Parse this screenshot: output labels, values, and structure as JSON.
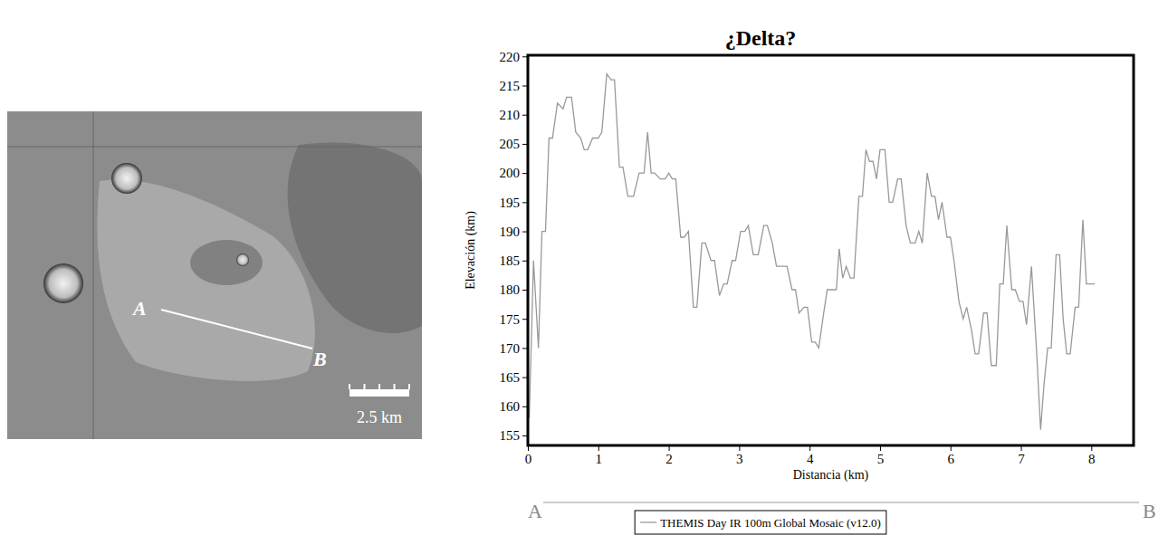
{
  "map": {
    "point_a": "A",
    "point_b": "B",
    "scale_bar": "2.5 km"
  },
  "chart_data": {
    "type": "line",
    "title": "¿Delta?",
    "x_label": "Distancia (km)",
    "y_label": "Elevación (km)",
    "xlim": [
      0,
      8.6
    ],
    "ylim": [
      153.3,
      220.2
    ],
    "xticks": [
      0,
      1,
      2,
      3,
      4,
      5,
      6,
      7,
      8
    ],
    "yticks": [
      155,
      160,
      165,
      170,
      175,
      180,
      185,
      190,
      195,
      200,
      205,
      210,
      215,
      220
    ],
    "grid": false,
    "legend": "bottom",
    "x": [
      0.02,
      0.08,
      0.15,
      0.2,
      0.25,
      0.3,
      0.35,
      0.42,
      0.5,
      0.55,
      0.62,
      0.68,
      0.75,
      0.8,
      0.85,
      0.92,
      1.0,
      1.05,
      1.12,
      1.18,
      1.23,
      1.3,
      1.35,
      1.42,
      1.5,
      1.58,
      1.65,
      1.7,
      1.75,
      1.8,
      1.88,
      1.95,
      2.0,
      2.05,
      2.1,
      2.17,
      2.22,
      2.28,
      2.35,
      2.4,
      2.47,
      2.52,
      2.6,
      2.65,
      2.72,
      2.78,
      2.83,
      2.9,
      2.95,
      3.02,
      3.08,
      3.13,
      3.2,
      3.27,
      3.35,
      3.4,
      3.47,
      3.53,
      3.6,
      3.68,
      3.75,
      3.8,
      3.85,
      3.92,
      3.97,
      4.03,
      4.08,
      4.13,
      4.2,
      4.25,
      4.33,
      4.38,
      4.42,
      4.47,
      4.52,
      4.58,
      4.63,
      4.7,
      4.75,
      4.8,
      4.85,
      4.9,
      4.95,
      5.0,
      5.07,
      5.13,
      5.18,
      5.25,
      5.3,
      5.37,
      5.43,
      5.5,
      5.55,
      5.6,
      5.67,
      5.73,
      5.78,
      5.83,
      5.88,
      5.95,
      6.0,
      6.05,
      6.12,
      6.18,
      6.23,
      6.3,
      6.35,
      6.4,
      6.47,
      6.52,
      6.58,
      6.65,
      6.7,
      6.75,
      6.8,
      6.87,
      6.92,
      6.98,
      7.03,
      7.08,
      7.15,
      7.22,
      7.28,
      7.33,
      7.38,
      7.43,
      7.5,
      7.55,
      7.6,
      7.65,
      7.7,
      7.77,
      7.82,
      7.88,
      7.93,
      8.0,
      8.05
    ],
    "series": [
      {
        "name": "THEMIS Day IR 100m Global Mosaic (v12.0)",
        "color": "#999999",
        "values": [
          158,
          185,
          170,
          190,
          190,
          206,
          206,
          212,
          211,
          213,
          213,
          207,
          206,
          204,
          204,
          206,
          206,
          207,
          217,
          216,
          216,
          201,
          201,
          196,
          196,
          200,
          200,
          207,
          200,
          200,
          199,
          199,
          200,
          199,
          199,
          189,
          189,
          190,
          177,
          177,
          188,
          188,
          185,
          185,
          179,
          181,
          181,
          185,
          185,
          190,
          190,
          191,
          186,
          186,
          191,
          191,
          188,
          184,
          184,
          184,
          180,
          180,
          176,
          177,
          177,
          171,
          171,
          170,
          176,
          180,
          180,
          180,
          187,
          182,
          184,
          182,
          182,
          196,
          196,
          204,
          202,
          202,
          199,
          204,
          204,
          195,
          195,
          199,
          199,
          191,
          188,
          188,
          190,
          188,
          200,
          196,
          196,
          192,
          195,
          189,
          189,
          185,
          178,
          175,
          177,
          173,
          169,
          169,
          176,
          176,
          167,
          167,
          181,
          181,
          191,
          180,
          180,
          178,
          178,
          174,
          184,
          170,
          156,
          164,
          170,
          170,
          186,
          186,
          175,
          169,
          169,
          177,
          177,
          192,
          181,
          181,
          181
        ]
      }
    ]
  }
}
